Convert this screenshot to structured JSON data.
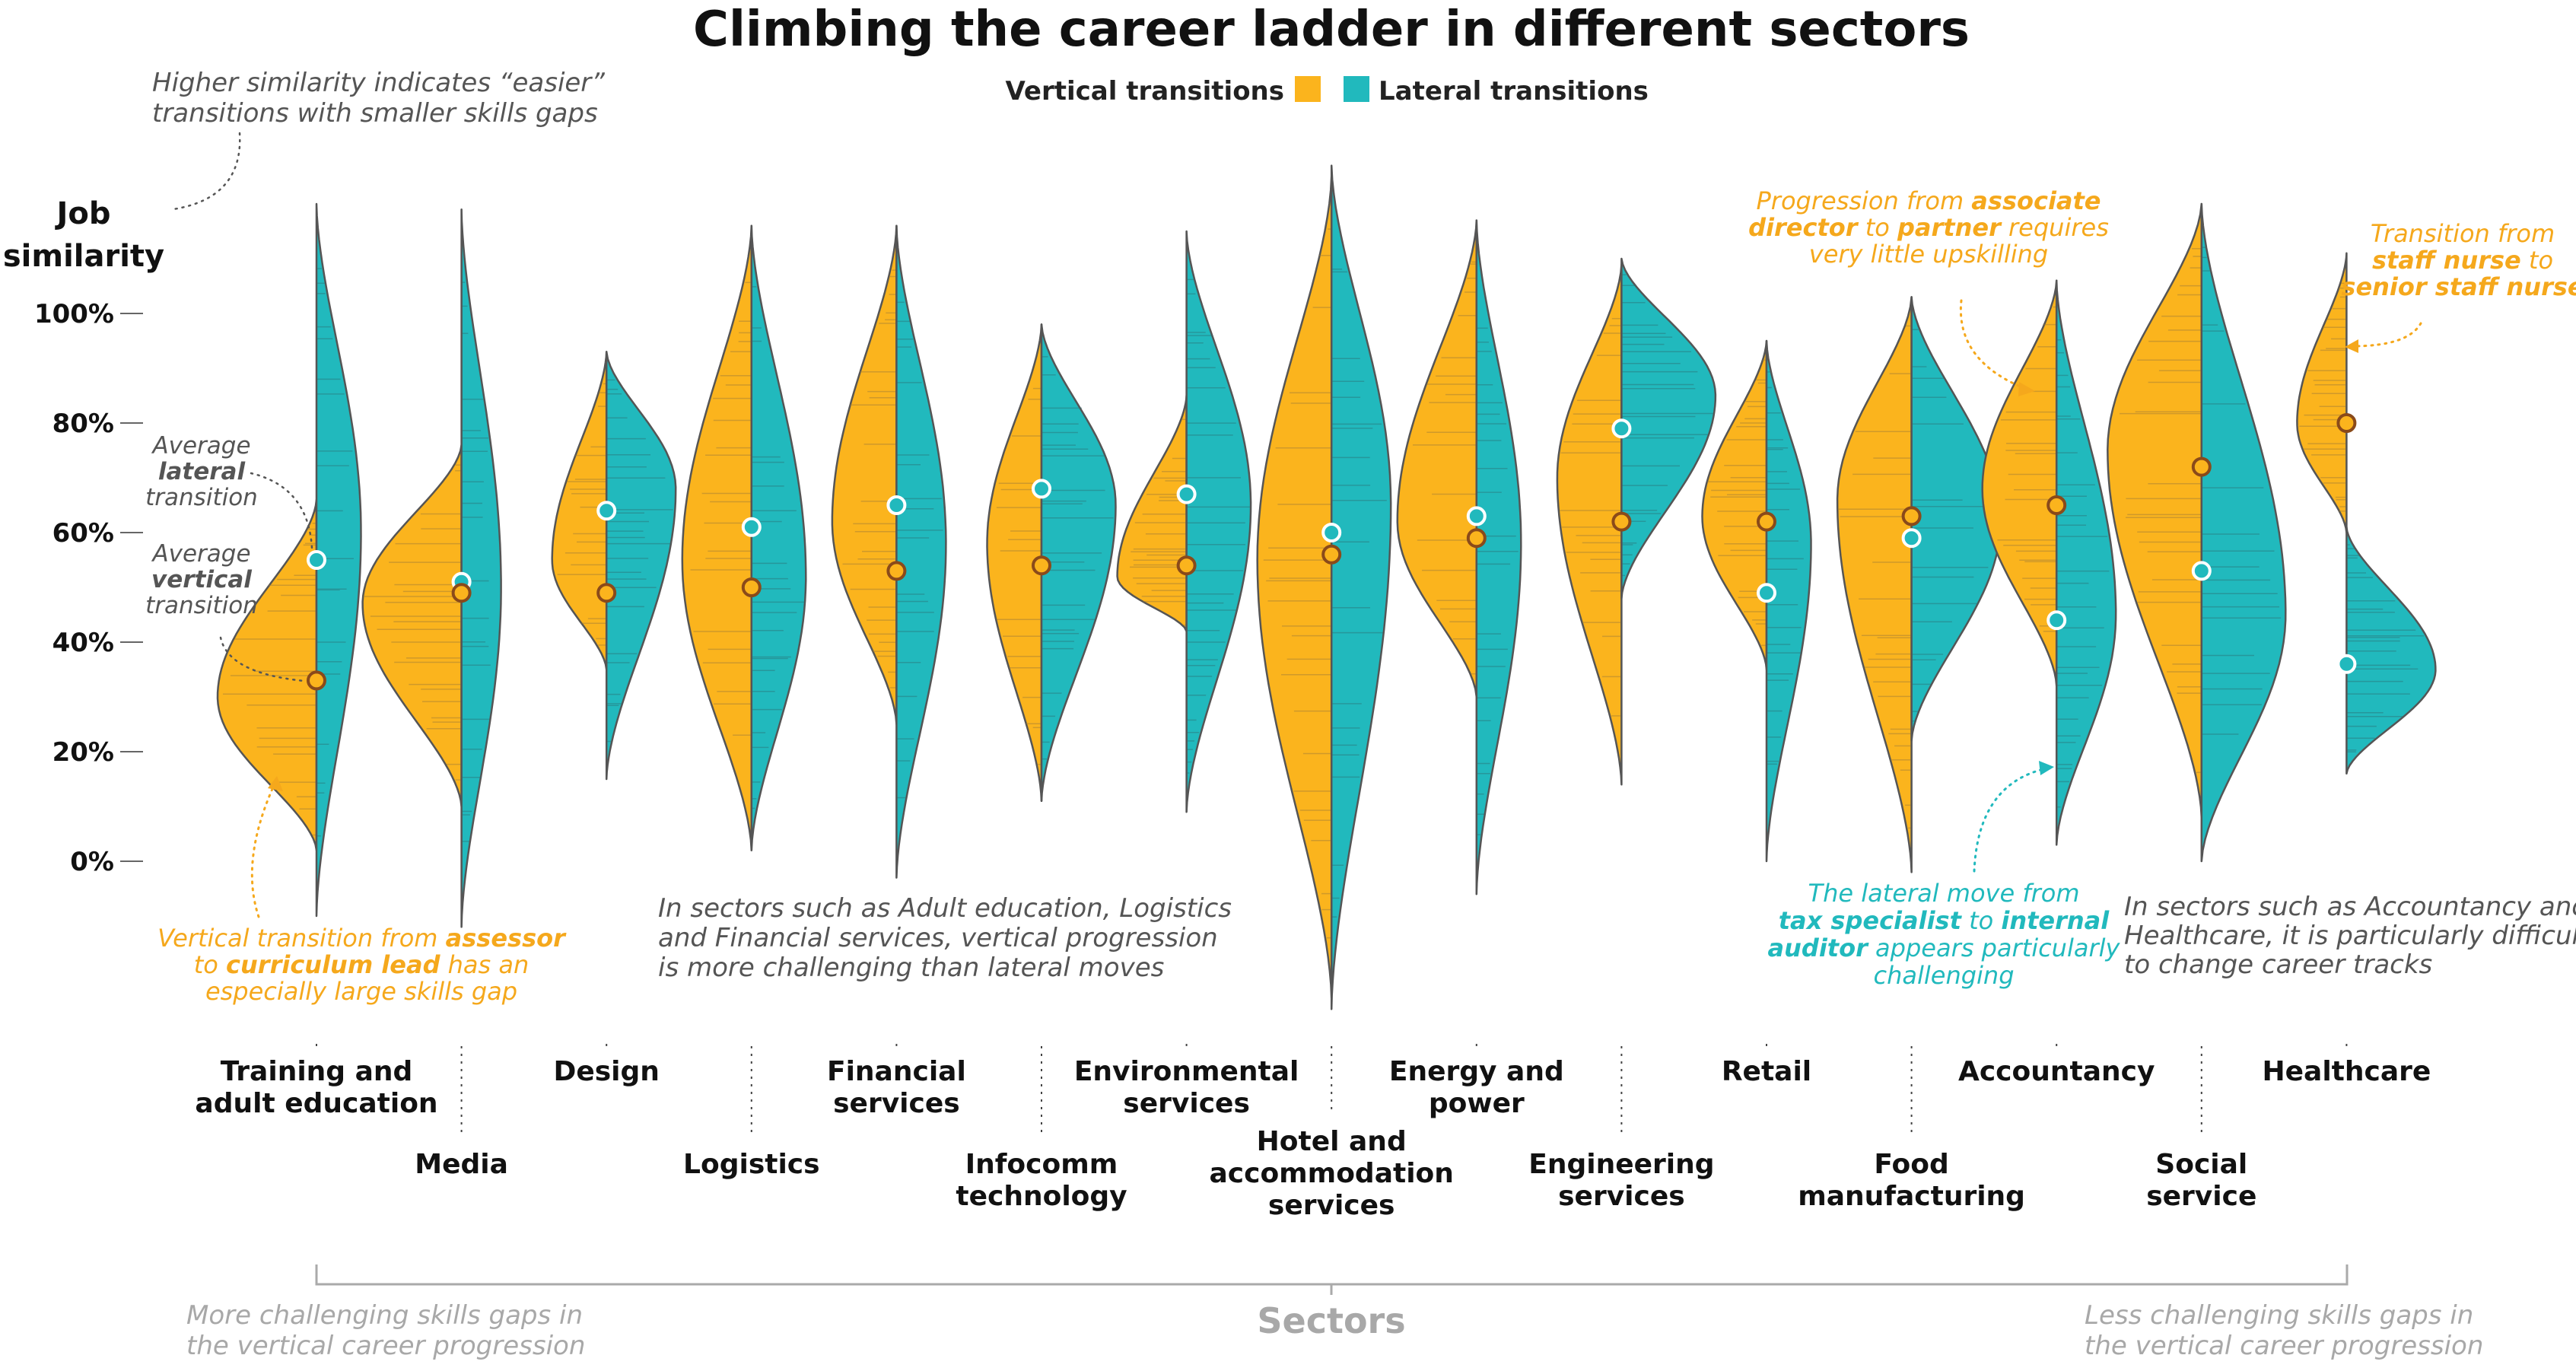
{
  "chart_data": {
    "type": "violin",
    "title": "Climbing the career ladder in different sectors",
    "legend": {
      "placement": "top-center",
      "items": [
        {
          "name": "Vertical transitions",
          "color": "#FBB41D"
        },
        {
          "name": "Lateral transitions",
          "color": "#21B9BD"
        }
      ]
    },
    "ylabel_lines": [
      "Job",
      "similarity"
    ],
    "yticks": [
      "100%",
      "80%",
      "60%",
      "40%",
      "20%",
      "0%"
    ],
    "ylim": [
      0,
      100
    ],
    "xlabel": "Sectors",
    "x_left_note": [
      "More challenging skills gaps in",
      "the vertical career progression"
    ],
    "x_right_note": [
      "Less challenging skills gaps in",
      "the vertical career progression"
    ],
    "colors": {
      "vertical": "#FBB41D",
      "lateral": "#21B9BD",
      "outline": "#555555",
      "line_mark": "#8a7a4a",
      "dot_outline": "#8A4A1A"
    },
    "series": [
      {
        "name": "Average vertical transition",
        "values": [
          33,
          49,
          49,
          50,
          53,
          54,
          54,
          56,
          59,
          62,
          62,
          63,
          65,
          72,
          80
        ]
      },
      {
        "name": "Average lateral transition",
        "values": [
          55,
          51,
          64,
          61,
          65,
          68,
          67,
          60,
          63,
          79,
          49,
          59,
          44,
          53,
          36
        ]
      }
    ],
    "categories": [
      {
        "label": [
          "Training and",
          "adult education"
        ],
        "row": 0,
        "v": {
          "min": 2,
          "max": 66,
          "peak": 30,
          "width": 1.0
        },
        "l": {
          "min": -10,
          "max": 120,
          "peak": 60,
          "width": 0.45
        }
      },
      {
        "label": [
          "Media"
        ],
        "row": 1,
        "v": {
          "min": 10,
          "max": 76,
          "peak": 47,
          "width": 1.0
        },
        "l": {
          "min": -12,
          "max": 119,
          "peak": 50,
          "width": 0.4
        }
      },
      {
        "label": [
          "Design"
        ],
        "row": 0,
        "v": {
          "min": 35,
          "max": 93,
          "peak": 55,
          "width": 0.55
        },
        "l": {
          "min": 15,
          "max": 93,
          "peak": 68,
          "width": 0.7
        }
      },
      {
        "label": [
          "Logistics"
        ],
        "row": 1,
        "v": {
          "min": 2,
          "max": 116,
          "peak": 55,
          "width": 0.7
        },
        "l": {
          "min": 2,
          "max": 116,
          "peak": 52,
          "width": 0.55
        }
      },
      {
        "label": [
          "Financial",
          "services"
        ],
        "row": 0,
        "v": {
          "min": 25,
          "max": 116,
          "peak": 62,
          "width": 0.65
        },
        "l": {
          "min": -3,
          "max": 116,
          "peak": 58,
          "width": 0.5
        }
      },
      {
        "label": [
          "Infocomm",
          "technology"
        ],
        "row": 1,
        "v": {
          "min": 11,
          "max": 98,
          "peak": 58,
          "width": 0.55
        },
        "l": {
          "min": 11,
          "max": 98,
          "peak": 65,
          "width": 0.75
        }
      },
      {
        "label": [
          "Environmental",
          "services"
        ],
        "row": 0,
        "v": {
          "min": 42,
          "max": 85,
          "peak": 52,
          "width": 0.7
        },
        "l": {
          "min": 9,
          "max": 115,
          "peak": 65,
          "width": 0.65
        }
      },
      {
        "label": [
          "Hotel and",
          "accommodation",
          "services"
        ],
        "row": 2,
        "v": {
          "min": -25,
          "max": 125,
          "peak": 55,
          "width": 0.75
        },
        "l": {
          "min": -27,
          "max": 127,
          "peak": 65,
          "width": 0.6
        }
      },
      {
        "label": [
          "Energy and",
          "power"
        ],
        "row": 0,
        "v": {
          "min": 30,
          "max": 117,
          "peak": 62,
          "width": 0.8
        },
        "l": {
          "min": -6,
          "max": 117,
          "peak": 58,
          "width": 0.45
        }
      },
      {
        "label": [
          "Engineering",
          "services"
        ],
        "row": 1,
        "v": {
          "min": 14,
          "max": 109,
          "peak": 70,
          "width": 0.65
        },
        "l": {
          "min": 48,
          "max": 110,
          "peak": 85,
          "width": 0.95
        }
      },
      {
        "label": [
          "Retail"
        ],
        "row": 0,
        "v": {
          "min": 35,
          "max": 95,
          "peak": 63,
          "width": 0.65
        },
        "l": {
          "min": 0,
          "max": 95,
          "peak": 58,
          "width": 0.45
        }
      },
      {
        "label": [
          "Food",
          "manufacturing"
        ],
        "row": 1,
        "v": {
          "min": -2,
          "max": 103,
          "peak": 66,
          "width": 0.75
        },
        "l": {
          "min": 22,
          "max": 103,
          "peak": 62,
          "width": 0.9
        }
      },
      {
        "label": [
          "Accountancy"
        ],
        "row": 0,
        "v": {
          "min": 32,
          "max": 106,
          "peak": 68,
          "width": 0.75
        },
        "l": {
          "min": 3,
          "max": 106,
          "peak": 45,
          "width": 0.6
        }
      },
      {
        "label": [
          "Social",
          "service"
        ],
        "row": 1,
        "v": {
          "min": 8,
          "max": 120,
          "peak": 75,
          "width": 0.95
        },
        "l": {
          "min": 0,
          "max": 120,
          "peak": 45,
          "width": 0.85
        }
      },
      {
        "label": [
          "Healthcare"
        ],
        "row": 0,
        "v": {
          "min": 60,
          "max": 111,
          "peak": 80,
          "width": 0.5
        },
        "l": {
          "min": 16,
          "max": 61,
          "peak": 35,
          "width": 0.9
        }
      }
    ],
    "annotations": {
      "top_left": [
        "Higher similarity indicates “easier”",
        "transitions with smaller skills gaps"
      ],
      "avg_lateral": [
        "Average",
        "lateral",
        "transition"
      ],
      "avg_vertical": [
        "Average",
        "vertical",
        "transition"
      ],
      "assessor": [
        [
          {
            "t": "Vertical transition from ",
            "b": false
          },
          {
            "t": "assessor",
            "b": true
          }
        ],
        [
          {
            "t": "to ",
            "b": false
          },
          {
            "t": "curriculum lead",
            "b": true
          },
          {
            "t": " has an",
            "b": false
          }
        ],
        [
          {
            "t": "especially large skills gap",
            "b": false
          }
        ]
      ],
      "middle_note": [
        "In sectors such as Adult education, Logistics",
        "and Financial services, vertical progression",
        "is more challenging than lateral moves"
      ],
      "associate": [
        [
          {
            "t": "Progression from ",
            "b": false
          },
          {
            "t": "associate",
            "b": true
          }
        ],
        [
          {
            "t": "director",
            "b": true
          },
          {
            "t": " to ",
            "b": false
          },
          {
            "t": "partner",
            "b": true
          },
          {
            "t": " requires",
            "b": false
          }
        ],
        [
          {
            "t": "very little upskilling",
            "b": false
          }
        ]
      ],
      "staff_nurse": [
        [
          {
            "t": "Transition from",
            "b": false
          }
        ],
        [
          {
            "t": "staff nurse",
            "b": true
          },
          {
            "t": " to",
            "b": false
          }
        ],
        [
          {
            "t": "senior staff nurse",
            "b": true
          }
        ]
      ],
      "tax_specialist": [
        [
          {
            "t": "The lateral move from",
            "b": false
          }
        ],
        [
          {
            "t": "tax specialist",
            "b": true
          },
          {
            "t": " to ",
            "b": false
          },
          {
            "t": "internal",
            "b": true
          }
        ],
        [
          {
            "t": "auditor",
            "b": true
          },
          {
            "t": " appears particularly",
            "b": false
          }
        ],
        [
          {
            "t": "challenging",
            "b": false
          }
        ]
      ],
      "right_note": [
        "In sectors such as Accountancy and",
        "Healthcare, it is particularly difficult",
        "to change career tracks"
      ]
    }
  }
}
